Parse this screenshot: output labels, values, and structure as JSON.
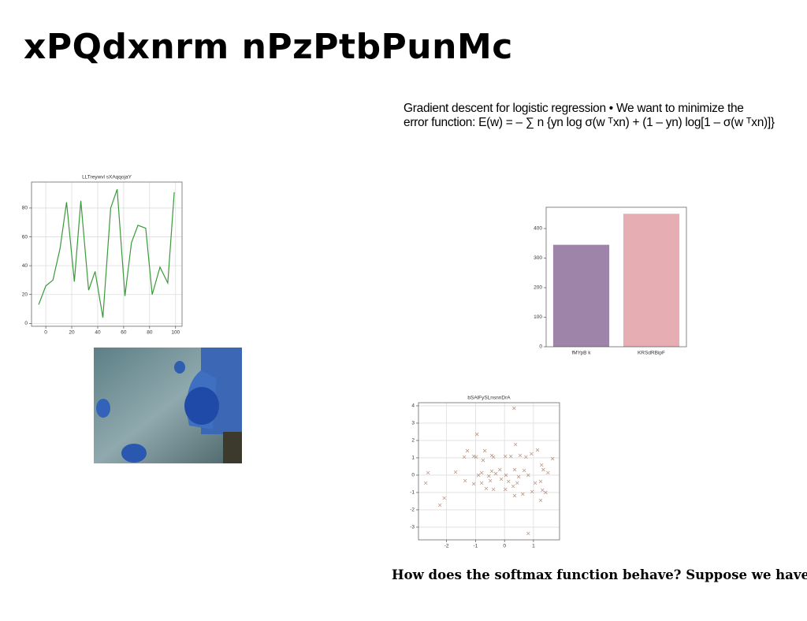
{
  "title": "xPQdxnrm nPzPtbPunMc",
  "paragraph": [
    "Gradient descent for logistic regression • We want to minimize the",
    "error function: E(w) = – ∑ n {yn log σ(w ᵀxn) + (1 – yn) log[1 – σ(w ᵀxn)]}"
  ],
  "caption": "How does the softmax function behave? Suppose we have",
  "chart_data": [
    {
      "type": "line",
      "title": "LLTreywvl sXAqqojaY",
      "color": "#3a9a3a",
      "grid": true,
      "x": [
        -5.5,
        0,
        5.5,
        11,
        16,
        22,
        27,
        33,
        38,
        44,
        50,
        55,
        61,
        66,
        71,
        77,
        82,
        88,
        94,
        99
      ],
      "values": [
        13,
        26,
        30,
        52,
        84,
        29,
        85,
        23,
        36,
        4,
        80,
        93,
        19,
        56,
        68,
        66,
        20,
        39,
        28,
        91
      ],
      "xlim": [
        -11,
        105
      ],
      "ylim": [
        -2,
        98
      ],
      "xticks": [
        0,
        20,
        40,
        60,
        80,
        100
      ],
      "yticks": [
        0,
        20,
        40,
        60,
        80
      ]
    },
    {
      "type": "bar",
      "categories": [
        "fMYpB k",
        "KRSdRBipF"
      ],
      "values": [
        345,
        450
      ],
      "colors": [
        "#9f84a9",
        "#e6aeb2"
      ],
      "grid": false,
      "ylim": [
        0,
        472
      ],
      "yticks": [
        0,
        100,
        200,
        300,
        400
      ]
    },
    {
      "type": "scatter",
      "title": "bSAlFySLnsnnDrA",
      "color": "#a87560",
      "grid": true,
      "x": [
        0.33,
        -0.95,
        0.38,
        1.14,
        -1.28,
        -0.68,
        0.93,
        -1.06,
        -1.39,
        -0.98,
        -0.44,
        0.03,
        0.22,
        0.54,
        0.74,
        1.66,
        -0.74,
        -0.38,
        1.28,
        1.34,
        -1.69,
        -2.64,
        -0.79,
        -0.44,
        -0.16,
        0.35,
        0.68,
        1.5,
        -0.9,
        -0.54,
        -0.3,
        0.05,
        0.49,
        0.82,
        -2.72,
        -1.36,
        -1.06,
        -0.79,
        -0.49,
        -0.11,
        0.14,
        0.44,
        1.06,
        1.25,
        -0.63,
        -0.38,
        0.03,
        0.3,
        0.95,
        1.31,
        1.42,
        0.35,
        0.63,
        -2.08,
        -2.23,
        1.25,
        0.82
      ],
      "y": [
        3.86,
        2.36,
        1.77,
        1.45,
        1.41,
        1.41,
        1.23,
        1.09,
        1.05,
        1.05,
        1.14,
        1.09,
        1.09,
        1.14,
        1.05,
        0.95,
        0.86,
        1.05,
        0.59,
        0.32,
        0.18,
        0.14,
        0.14,
        0.23,
        0.32,
        0.32,
        0.27,
        0.14,
        0,
        -0.05,
        0.09,
        0,
        -0.09,
        0,
        -0.45,
        -0.32,
        -0.5,
        -0.45,
        -0.32,
        -0.23,
        -0.36,
        -0.45,
        -0.45,
        -0.36,
        -0.77,
        -0.82,
        -0.82,
        -0.64,
        -0.95,
        -0.86,
        -1,
        -1.18,
        -1.09,
        -1.32,
        -1.73,
        -1.45,
        -3.36
      ],
      "xlim": [
        -2.97,
        1.9
      ],
      "ylim": [
        -3.73,
        4.18
      ],
      "xticks": [
        -2,
        -1,
        0,
        1
      ],
      "yticks": [
        -3,
        -2,
        -1,
        0,
        1,
        2,
        3,
        4
      ]
    }
  ]
}
